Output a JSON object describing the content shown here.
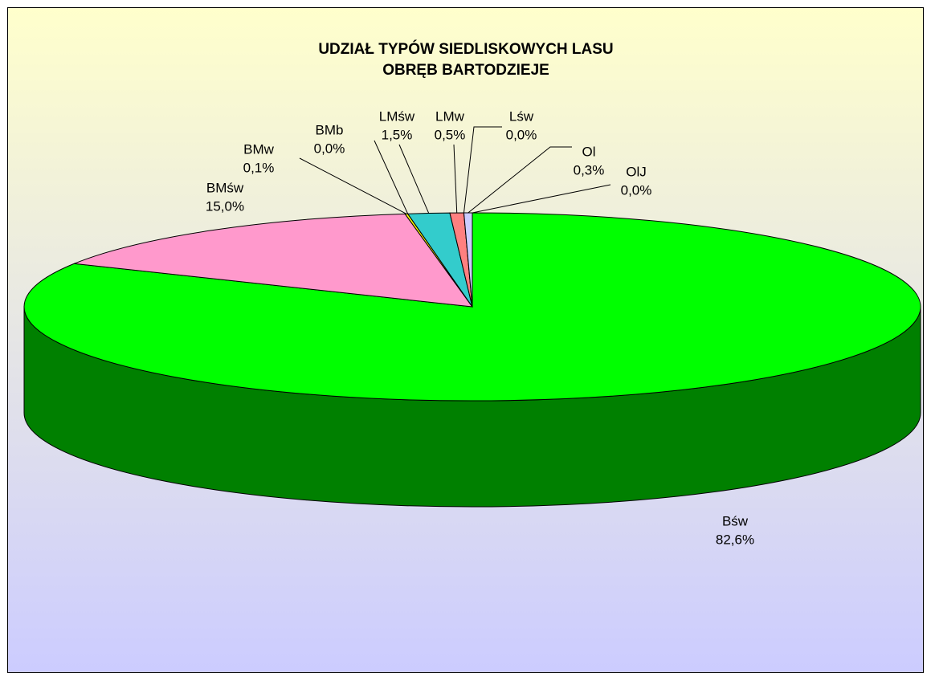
{
  "chart_data": {
    "type": "pie3d",
    "title": "UDZIAŁ TYPÓW SIEDLISKOWYCH LASU",
    "subtitle": "OBRĘB BARTODZIEJE",
    "categories": [
      "Bśw",
      "BMśw",
      "BMw",
      "BMb",
      "LMśw",
      "LMw",
      "Lśw",
      "Ol",
      "OlJ"
    ],
    "values": [
      82.6,
      15.0,
      0.1,
      0.0,
      1.5,
      0.5,
      0.0,
      0.3,
      0.0
    ],
    "value_labels": [
      "82,6%",
      "15,0%",
      "0,1%",
      "0,0%",
      "1,5%",
      "0,5%",
      "0,0%",
      "0,3%",
      "0,0%"
    ],
    "colors": [
      "#00ff00",
      "#ff99cc",
      "#ffff00",
      "#ff9900",
      "#33cccc",
      "#ff8080",
      "#9999ff",
      "#ccccff",
      "#cc99ff"
    ]
  }
}
